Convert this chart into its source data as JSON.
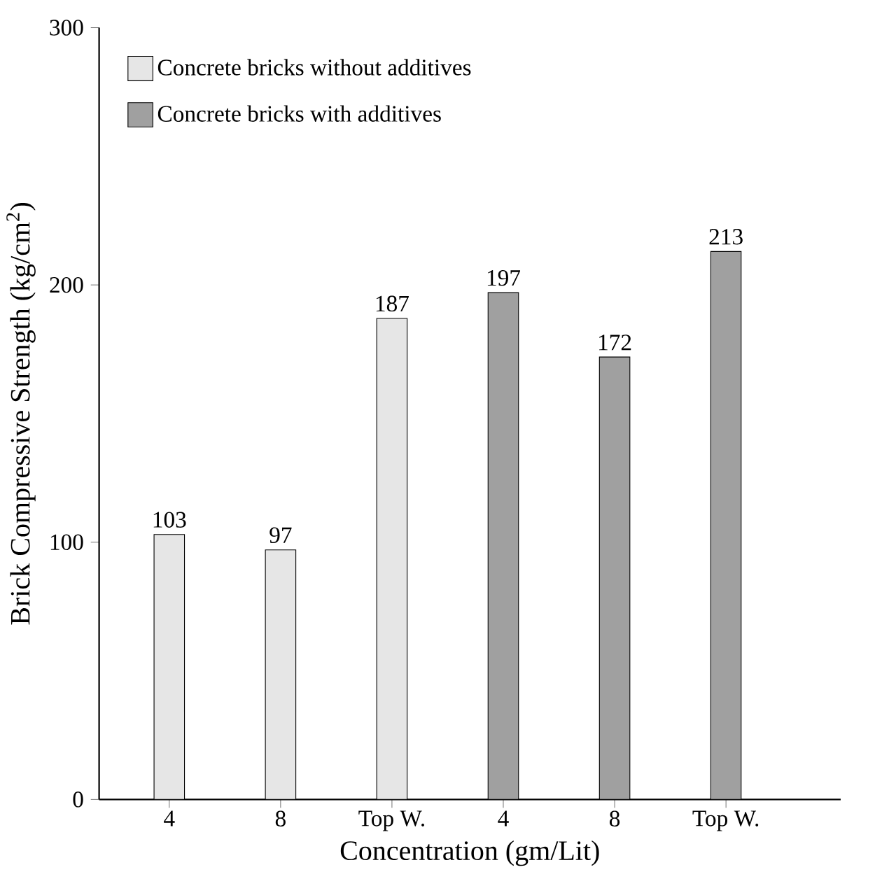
{
  "chart_data": {
    "type": "bar",
    "xlabel": "Concentration (gm/Lit)",
    "ylabel": "Brick Compressive Strength (kg/cm$^{2}$)",
    "categories": [
      "4",
      "8",
      "Top W.",
      "4",
      "8",
      "Top W."
    ],
    "series": [
      {
        "name": "Concrete bricks without additives",
        "color": "#e6e6e6",
        "values": [
          103,
          97,
          187,
          null,
          null,
          null
        ]
      },
      {
        "name": "Concrete bricks with additives",
        "color": "#a0a0a0",
        "values": [
          null,
          null,
          null,
          197,
          172,
          213
        ]
      }
    ],
    "ylim": [
      0,
      300
    ],
    "yticks": [
      0,
      100,
      200,
      300
    ],
    "data_labels": true,
    "grid": false,
    "legend": "top left"
  }
}
